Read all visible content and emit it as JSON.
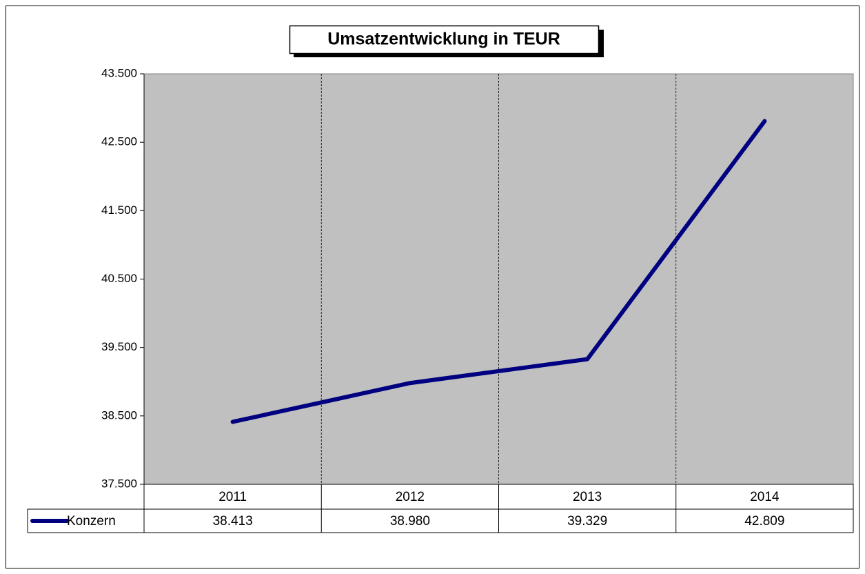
{
  "chart_data": {
    "type": "line",
    "title": "Umsatzentwicklung in TEUR",
    "categories": [
      "2011",
      "2012",
      "2013",
      "2014"
    ],
    "series": [
      {
        "name": "Konzern",
        "color": "#000080",
        "values": [
          38413,
          38980,
          39329,
          42809
        ],
        "value_labels": [
          "38.413",
          "38.980",
          "39.329",
          "42.809"
        ]
      }
    ],
    "ylim": [
      37500,
      43500
    ],
    "yticks": [
      {
        "value": 37500,
        "label": "37.500"
      },
      {
        "value": 38500,
        "label": "38.500"
      },
      {
        "value": 39500,
        "label": "39.500"
      },
      {
        "value": 40500,
        "label": "40.500"
      },
      {
        "value": 41500,
        "label": "41.500"
      },
      {
        "value": 42500,
        "label": "42.500"
      },
      {
        "value": 43500,
        "label": "43.500"
      }
    ],
    "grid": true
  }
}
